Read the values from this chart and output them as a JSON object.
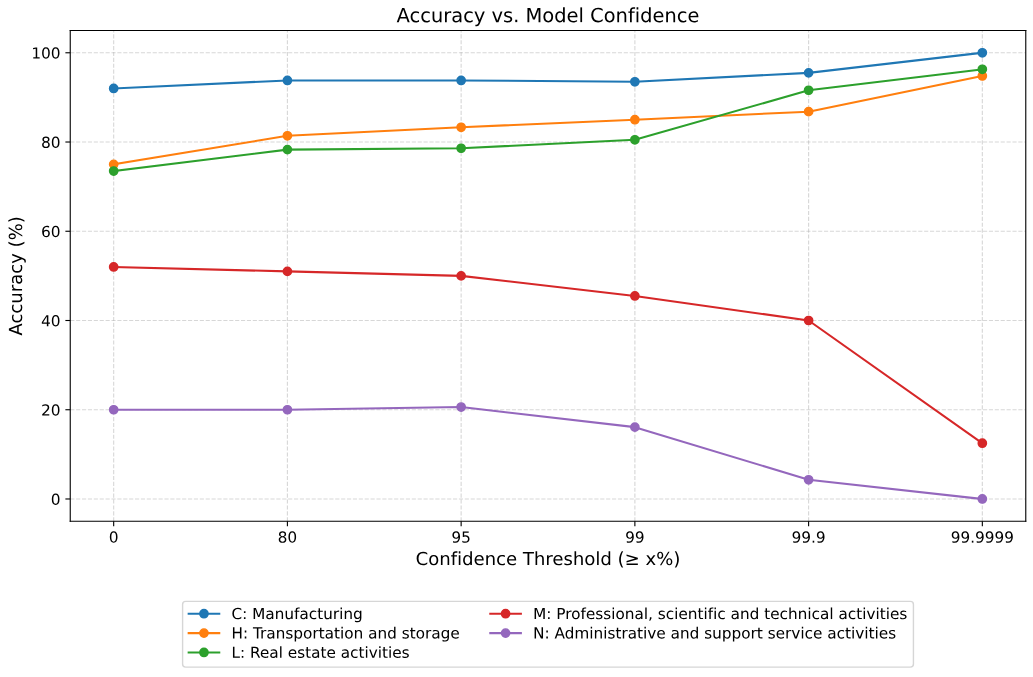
{
  "chart_data": {
    "type": "line",
    "title": "Accuracy vs. Model Confidence",
    "xlabel": "Confidence Threshold (≥ x%)",
    "ylabel": "Accuracy (%)",
    "categories": [
      "0",
      "80",
      "95",
      "99",
      "99.9",
      "99.9999"
    ],
    "series": [
      {
        "name": "C: Manufacturing",
        "color": "#1f77b4",
        "values": [
          92.0,
          93.8,
          93.8,
          93.5,
          95.5,
          100.0
        ]
      },
      {
        "name": "H: Transportation and storage",
        "color": "#ff7f0e",
        "values": [
          75.0,
          81.4,
          83.3,
          85.0,
          86.8,
          94.8
        ]
      },
      {
        "name": "L: Real estate activities",
        "color": "#2ca02c",
        "values": [
          73.5,
          78.3,
          78.6,
          80.5,
          91.6,
          96.3
        ]
      },
      {
        "name": "M: Professional, scientific and technical activities",
        "color": "#d62728",
        "values": [
          52.0,
          51.0,
          50.0,
          45.5,
          40.0,
          12.5
        ]
      },
      {
        "name": "N: Administrative and support service activities",
        "color": "#9467bd",
        "values": [
          20.0,
          20.0,
          20.6,
          16.1,
          4.3,
          0.0
        ]
      }
    ],
    "ylim": [
      -5,
      105
    ],
    "yticks": [
      0,
      20,
      40,
      60,
      80,
      100
    ],
    "grid": true,
    "legend": "bottom",
    "marker": "circle",
    "line_style": "solid"
  }
}
